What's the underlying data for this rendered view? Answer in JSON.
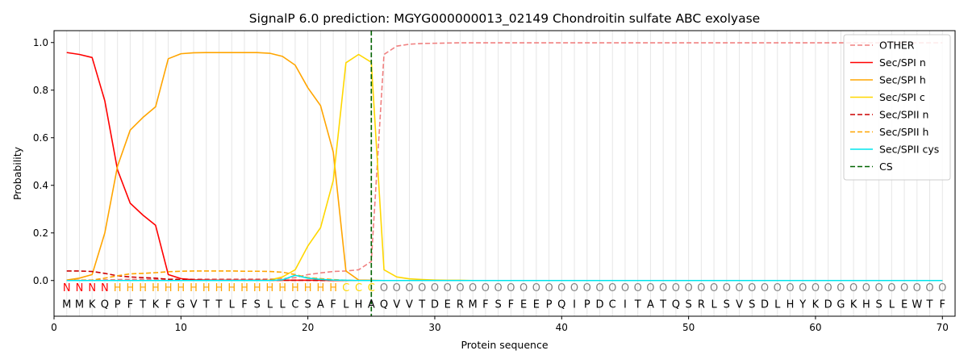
{
  "chart_data": {
    "type": "line",
    "title": "SignalP 6.0 prediction: MGYG000000013_02149 Chondroitin sulfate ABC exolyase",
    "xlabel": "Protein sequence",
    "ylabel": "Probability",
    "xlim": [
      0,
      71
    ],
    "ylim": [
      -0.15,
      1.05
    ],
    "xticks": [
      0,
      10,
      20,
      30,
      40,
      50,
      60,
      70
    ],
    "yticks": [
      0.0,
      0.2,
      0.4,
      0.6,
      0.8,
      1.0
    ],
    "xtick_labels": [
      "0",
      "10",
      "20",
      "30",
      "40",
      "50",
      "60",
      "70"
    ],
    "ytick_labels": [
      "0.0",
      "0.2",
      "0.4",
      "0.6",
      "0.8",
      "1.0"
    ],
    "legend_position": "top-right",
    "sequence": [
      "M",
      "M",
      "K",
      "Q",
      "P",
      "F",
      "T",
      "K",
      "F",
      "G",
      "V",
      "T",
      "T",
      "L",
      "F",
      "S",
      "L",
      "L",
      "C",
      "S",
      "A",
      "F",
      "L",
      "H",
      "A",
      "Q",
      "V",
      "V",
      "T",
      "D",
      "E",
      "R",
      "M",
      "F",
      "S",
      "F",
      "E",
      "E",
      "P",
      "Q",
      "I",
      "P",
      "D",
      "C",
      "I",
      "T",
      "A",
      "T",
      "Q",
      "S",
      "R",
      "L",
      "S",
      "V",
      "S",
      "D",
      "L",
      "H",
      "Y",
      "K",
      "D",
      "G",
      "K",
      "H",
      "S",
      "L",
      "E",
      "W",
      "T",
      "F"
    ],
    "labels": [
      "N",
      "N",
      "N",
      "N",
      "H",
      "H",
      "H",
      "H",
      "H",
      "H",
      "H",
      "H",
      "H",
      "H",
      "H",
      "H",
      "H",
      "H",
      "H",
      "H",
      "H",
      "H",
      "C",
      "C",
      "C",
      "O",
      "O",
      "O",
      "O",
      "O",
      "O",
      "O",
      "O",
      "O",
      "O",
      "O",
      "O",
      "O",
      "O",
      "O",
      "O",
      "O",
      "O",
      "O",
      "O",
      "O",
      "O",
      "O",
      "O",
      "O",
      "O",
      "O",
      "O",
      "O",
      "O",
      "O",
      "O",
      "O",
      "O",
      "O",
      "O",
      "O",
      "O",
      "O",
      "O",
      "O",
      "O",
      "O",
      "O",
      "O"
    ],
    "label_colors": {
      "N": "#ff0000",
      "H": "#ffa500",
      "C": "#ffd700",
      "O": "#808080"
    },
    "cs_position": 25,
    "cs_name": "CS",
    "cs_color": "#006400",
    "series": [
      {
        "name": "OTHER",
        "color": "#f08080",
        "dash": "dashed",
        "values": [
          0.001,
          0.002,
          0.002,
          0.003,
          0.004,
          0.005,
          0.005,
          0.005,
          0.006,
          0.006,
          0.006,
          0.006,
          0.006,
          0.006,
          0.006,
          0.006,
          0.006,
          0.008,
          0.012,
          0.025,
          0.032,
          0.038,
          0.04,
          0.045,
          0.08,
          0.95,
          0.985,
          0.993,
          0.996,
          0.997,
          0.998,
          0.999,
          0.999,
          0.999,
          0.999,
          0.999,
          0.999,
          0.999,
          0.999,
          0.999,
          0.999,
          0.999,
          0.999,
          0.999,
          0.999,
          0.999,
          0.999,
          0.999,
          0.999,
          0.999,
          0.999,
          0.999,
          0.999,
          0.999,
          0.999,
          0.999,
          0.999,
          0.999,
          0.999,
          0.999,
          0.999,
          0.999,
          0.999,
          0.999,
          0.999,
          0.999,
          0.999,
          0.999,
          0.999,
          0.999
        ]
      },
      {
        "name": "Sec/SPI n",
        "color": "#ff0000",
        "dash": "solid",
        "values": [
          0.958,
          0.95,
          0.937,
          0.755,
          0.465,
          0.325,
          0.275,
          0.232,
          0.025,
          0.008,
          0.003,
          0.002,
          0.001,
          0.001,
          0.001,
          0.001,
          0.001,
          0.001,
          0.001,
          0.001,
          0.001,
          0,
          0,
          0,
          0,
          0,
          0,
          0,
          0,
          0,
          0,
          0,
          0,
          0,
          0,
          0,
          0,
          0,
          0,
          0,
          0,
          0,
          0,
          0,
          0,
          0,
          0,
          0,
          0,
          0,
          0,
          0,
          0,
          0,
          0,
          0,
          0,
          0,
          0,
          0,
          0,
          0,
          0,
          0,
          0,
          0,
          0,
          0,
          0,
          0
        ]
      },
      {
        "name": "Sec/SPI h",
        "color": "#ffa500",
        "dash": "solid",
        "values": [
          0.002,
          0.01,
          0.025,
          0.2,
          0.48,
          0.632,
          0.685,
          0.73,
          0.932,
          0.953,
          0.957,
          0.958,
          0.958,
          0.958,
          0.958,
          0.958,
          0.955,
          0.942,
          0.905,
          0.81,
          0.735,
          0.54,
          0.04,
          0.002,
          0.001,
          0,
          0,
          0,
          0,
          0,
          0,
          0,
          0,
          0,
          0,
          0,
          0,
          0,
          0,
          0,
          0,
          0,
          0,
          0,
          0,
          0,
          0,
          0,
          0,
          0,
          0,
          0,
          0,
          0,
          0,
          0,
          0,
          0,
          0,
          0,
          0,
          0,
          0,
          0,
          0,
          0,
          0,
          0,
          0,
          0
        ]
      },
      {
        "name": "Sec/SPI c",
        "color": "#ffd700",
        "dash": "solid",
        "values": [
          0,
          0,
          0,
          0,
          0,
          0,
          0,
          0,
          0,
          0,
          0,
          0,
          0,
          0,
          0,
          0,
          0.002,
          0.015,
          0.045,
          0.145,
          0.222,
          0.42,
          0.915,
          0.95,
          0.917,
          0.045,
          0.015,
          0.007,
          0.004,
          0.002,
          0.001,
          0.001,
          0,
          0,
          0,
          0,
          0,
          0,
          0,
          0,
          0,
          0,
          0,
          0,
          0,
          0,
          0,
          0,
          0,
          0,
          0,
          0,
          0,
          0,
          0,
          0,
          0,
          0,
          0,
          0,
          0,
          0,
          0,
          0,
          0,
          0,
          0,
          0,
          0,
          0
        ]
      },
      {
        "name": "Sec/SPII n",
        "color": "#cc0000",
        "dash": "dashed",
        "values": [
          0.04,
          0.04,
          0.038,
          0.03,
          0.02,
          0.015,
          0.012,
          0.01,
          0.005,
          0.003,
          0.002,
          0.001,
          0.001,
          0.001,
          0.001,
          0.001,
          0.001,
          0.001,
          0.001,
          0.001,
          0,
          0,
          0,
          0,
          0,
          0,
          0,
          0,
          0,
          0,
          0,
          0,
          0,
          0,
          0,
          0,
          0,
          0,
          0,
          0,
          0,
          0,
          0,
          0,
          0,
          0,
          0,
          0,
          0,
          0,
          0,
          0,
          0,
          0,
          0,
          0,
          0,
          0,
          0,
          0,
          0,
          0,
          0,
          0,
          0,
          0,
          0,
          0,
          0,
          0
        ]
      },
      {
        "name": "Sec/SPII h",
        "color": "#ffa500",
        "dash": "dashed",
        "values": [
          0,
          0.001,
          0.002,
          0.01,
          0.02,
          0.028,
          0.03,
          0.033,
          0.037,
          0.039,
          0.04,
          0.04,
          0.04,
          0.04,
          0.039,
          0.039,
          0.038,
          0.035,
          0.025,
          0.012,
          0.008,
          0.004,
          0.001,
          0,
          0,
          0,
          0,
          0,
          0,
          0,
          0,
          0,
          0,
          0,
          0,
          0,
          0,
          0,
          0,
          0,
          0,
          0,
          0,
          0,
          0,
          0,
          0,
          0,
          0,
          0,
          0,
          0,
          0,
          0,
          0,
          0,
          0,
          0,
          0,
          0,
          0,
          0,
          0,
          0,
          0,
          0,
          0,
          0,
          0,
          0
        ]
      },
      {
        "name": "Sec/SPII cys",
        "color": "#00e5ee",
        "dash": "solid",
        "values": [
          0,
          0,
          0,
          0,
          0,
          0,
          0,
          0,
          0,
          0,
          0,
          0,
          0,
          0,
          0,
          0,
          0,
          0.003,
          0.022,
          0.01,
          0.005,
          0.002,
          0.001,
          0,
          0,
          0,
          0,
          0,
          0,
          0,
          0,
          0,
          0,
          0,
          0,
          0,
          0,
          0,
          0,
          0,
          0,
          0,
          0,
          0,
          0,
          0,
          0,
          0,
          0,
          0,
          0,
          0,
          0,
          0,
          0,
          0,
          0,
          0,
          0,
          0,
          0,
          0,
          0,
          0,
          0,
          0,
          0,
          0,
          0,
          0
        ]
      }
    ]
  }
}
